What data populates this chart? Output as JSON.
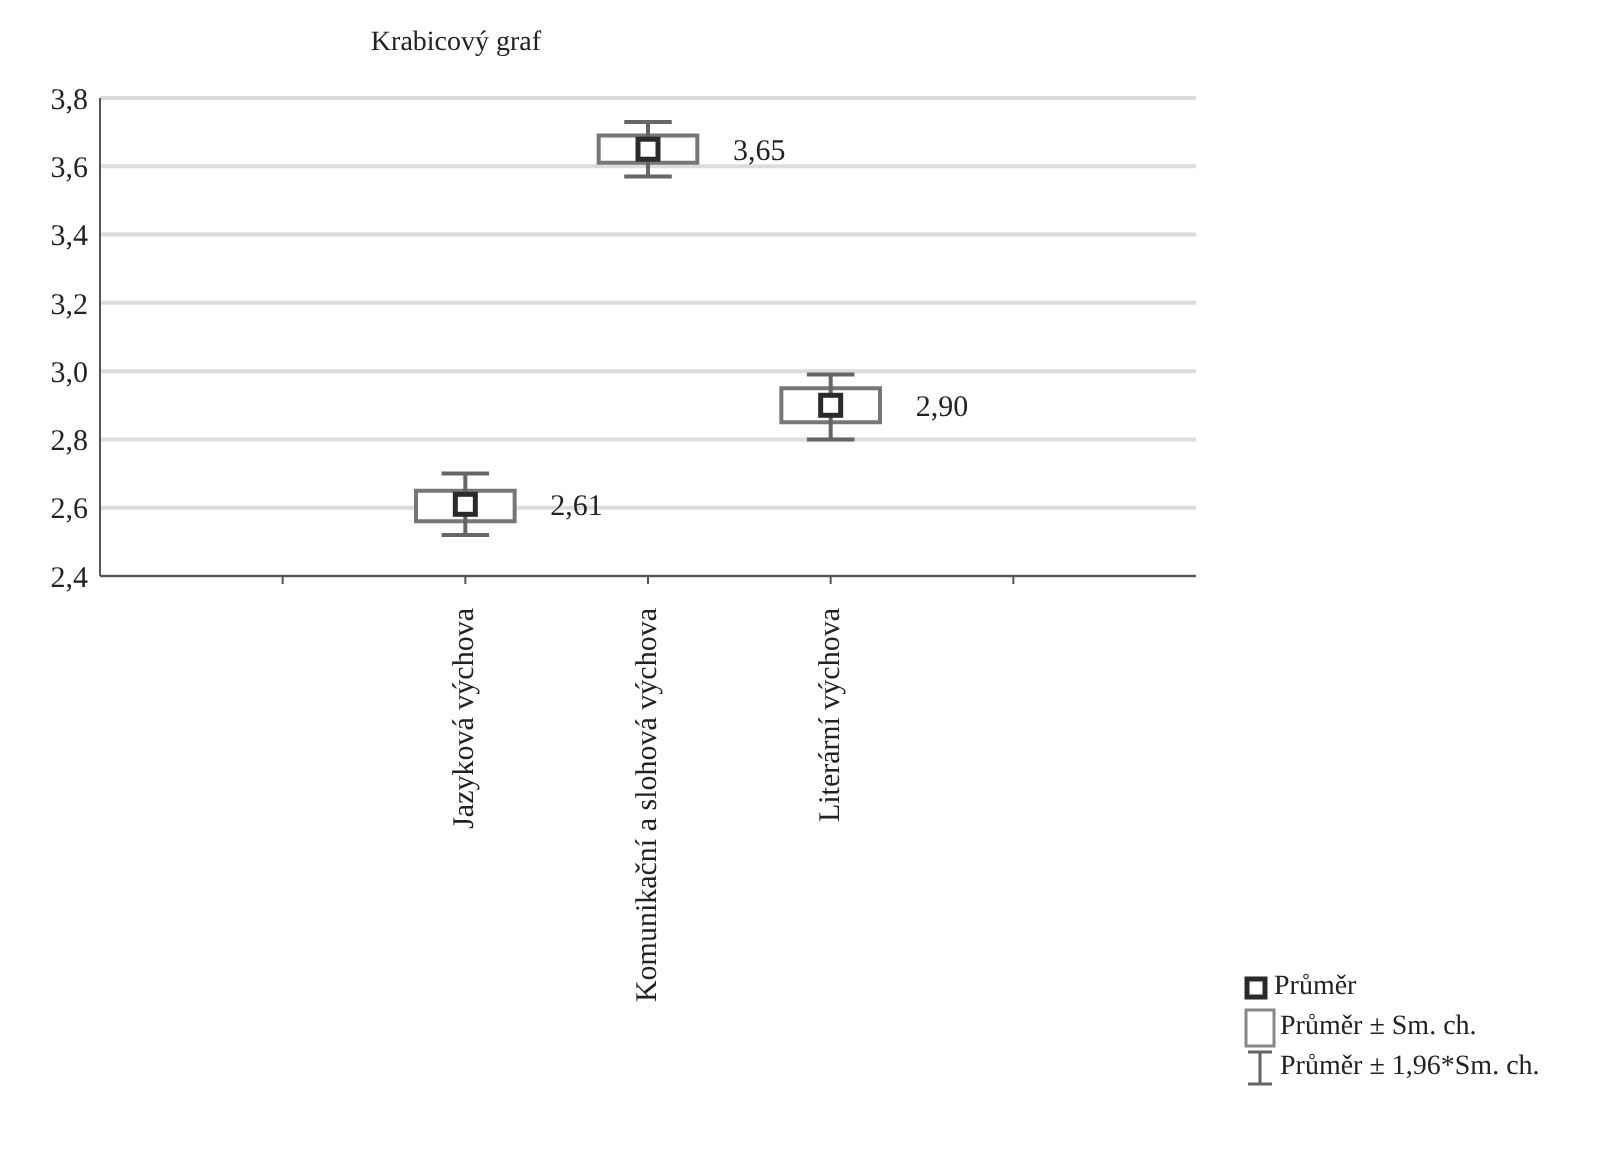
{
  "chart_data": {
    "type": "box",
    "title": "Krabicový graf",
    "categories": [
      null,
      "Jazyková výchova",
      "Komunikační a slohová výchova",
      "Literární výchova",
      null
    ],
    "boxes": [
      null,
      {
        "low": 2.52,
        "q1": 2.56,
        "q3": 2.65,
        "high": 2.7,
        "mean": 2.61
      },
      {
        "low": 3.57,
        "q1": 3.61,
        "q3": 3.69,
        "high": 3.73,
        "mean": 3.65
      },
      {
        "low": 2.8,
        "q1": 2.85,
        "q3": 2.95,
        "high": 2.99,
        "mean": 2.9
      },
      null
    ],
    "value_labels": [
      null,
      "2,61",
      "3,65",
      "2,90",
      null
    ],
    "ylim": [
      2.4,
      3.8
    ],
    "yticks": [
      {
        "value": 2.4,
        "label": "2,4"
      },
      {
        "value": 2.6,
        "label": "2,6"
      },
      {
        "value": 2.8,
        "label": "2,8"
      },
      {
        "value": 3.0,
        "label": "3,0"
      },
      {
        "value": 3.2,
        "label": "3,2"
      },
      {
        "value": 3.4,
        "label": "3,4"
      },
      {
        "value": 3.6,
        "label": "3,6"
      },
      {
        "value": 3.8,
        "label": "3,8"
      }
    ],
    "grid": "y",
    "annotations": [
      "Průměr",
      "Průměr ± Sm. ch.",
      "Průměr ± 1,96*Sm. ch."
    ]
  }
}
